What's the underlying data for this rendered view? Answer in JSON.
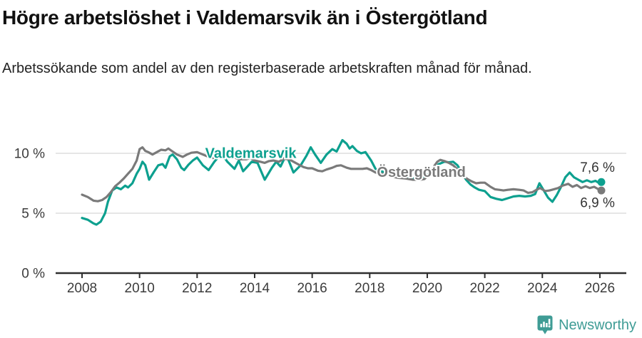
{
  "header": {
    "title": "Högre arbetslöshet i Valdemarsvik än i Östergötland",
    "subtitle": "Arbetssökande som andel av den registerbaserade arbetskraften månad för månad."
  },
  "footer": {
    "brand": "Newsworthy"
  },
  "colors": {
    "valdemarsvik": "#0DA08F",
    "ostergotland": "#7A7A7A",
    "grid": "#DDDDDD",
    "axis": "#2E2E2E",
    "tick_text": "#3C3C3C",
    "value_text": "#333333",
    "logo": "#3F9C95"
  },
  "chart_data": {
    "type": "line",
    "title": "Högre arbetslöshet i Valdemarsvik än i Östergötland",
    "subtitle": "Arbetssökande som andel av den registerbaserade arbetskraften månad för månad.",
    "y_unit": "%",
    "grid": "horizontal",
    "legend_position": "inline-labels",
    "xlim": [
      2007.9,
      2026.95
    ],
    "ylim": [
      0,
      11.6
    ],
    "x_ticks": [
      2008,
      2010,
      2012,
      2014,
      2016,
      2018,
      2020,
      2022,
      2024,
      2026
    ],
    "y_ticks": [
      {
        "value": 0,
        "label": "0 %"
      },
      {
        "value": 5,
        "label": "5 %"
      },
      {
        "value": 10,
        "label": "10 %"
      }
    ],
    "series": [
      {
        "id": "valdemarsvik",
        "name": "Valdemarsvik",
        "color_key": "valdemarsvik",
        "end_value_label": "7,6 %",
        "points": [
          [
            2008.0,
            4.6
          ],
          [
            2008.2,
            4.45
          ],
          [
            2008.4,
            4.15
          ],
          [
            2008.5,
            4.05
          ],
          [
            2008.65,
            4.3
          ],
          [
            2008.8,
            5.0
          ],
          [
            2008.9,
            5.95
          ],
          [
            2009.05,
            6.9
          ],
          [
            2009.2,
            7.15
          ],
          [
            2009.35,
            7.0
          ],
          [
            2009.5,
            7.3
          ],
          [
            2009.6,
            7.15
          ],
          [
            2009.75,
            7.5
          ],
          [
            2009.9,
            8.3
          ],
          [
            2010.0,
            8.7
          ],
          [
            2010.1,
            9.3
          ],
          [
            2010.2,
            9.0
          ],
          [
            2010.33,
            7.8
          ],
          [
            2010.5,
            8.45
          ],
          [
            2010.65,
            9.0
          ],
          [
            2010.8,
            9.1
          ],
          [
            2010.9,
            8.8
          ],
          [
            2011.05,
            9.75
          ],
          [
            2011.15,
            9.9
          ],
          [
            2011.3,
            9.5
          ],
          [
            2011.45,
            8.8
          ],
          [
            2011.55,
            8.6
          ],
          [
            2011.7,
            9.05
          ],
          [
            2011.85,
            9.4
          ],
          [
            2012.0,
            9.65
          ],
          [
            2012.2,
            9.0
          ],
          [
            2012.4,
            8.6
          ],
          [
            2012.6,
            9.3
          ],
          [
            2012.85,
            10.0
          ],
          [
            2013.05,
            9.3
          ],
          [
            2013.3,
            8.7
          ],
          [
            2013.45,
            9.4
          ],
          [
            2013.6,
            8.5
          ],
          [
            2013.75,
            8.9
          ],
          [
            2013.9,
            9.3
          ],
          [
            2014.1,
            9.2
          ],
          [
            2014.35,
            7.8
          ],
          [
            2014.6,
            8.8
          ],
          [
            2014.75,
            9.3
          ],
          [
            2014.9,
            8.9
          ],
          [
            2015.1,
            9.9
          ],
          [
            2015.35,
            8.4
          ],
          [
            2015.6,
            9.0
          ],
          [
            2015.8,
            9.8
          ],
          [
            2015.95,
            10.5
          ],
          [
            2016.1,
            9.9
          ],
          [
            2016.3,
            9.2
          ],
          [
            2016.5,
            9.9
          ],
          [
            2016.7,
            10.35
          ],
          [
            2016.85,
            10.15
          ],
          [
            2017.05,
            11.1
          ],
          [
            2017.2,
            10.8
          ],
          [
            2017.3,
            10.4
          ],
          [
            2017.4,
            10.6
          ],
          [
            2017.55,
            10.2
          ],
          [
            2017.7,
            10.0
          ],
          [
            2017.85,
            10.1
          ],
          [
            2018.05,
            9.4
          ],
          [
            2018.2,
            8.7
          ],
          [
            2018.4,
            8.5
          ],
          [
            2018.6,
            8.35
          ],
          [
            2018.8,
            8.2
          ],
          [
            2019.0,
            8.1
          ],
          [
            2019.25,
            8.0
          ],
          [
            2019.5,
            7.9
          ],
          [
            2019.75,
            7.95
          ],
          [
            2020.0,
            8.2
          ],
          [
            2020.2,
            8.6
          ],
          [
            2020.4,
            9.1
          ],
          [
            2020.6,
            9.3
          ],
          [
            2020.75,
            9.25
          ],
          [
            2020.9,
            9.3
          ],
          [
            2021.05,
            9.0
          ],
          [
            2021.2,
            8.4
          ],
          [
            2021.35,
            7.8
          ],
          [
            2021.5,
            7.4
          ],
          [
            2021.65,
            7.15
          ],
          [
            2021.8,
            6.95
          ],
          [
            2022.0,
            6.85
          ],
          [
            2022.2,
            6.35
          ],
          [
            2022.4,
            6.2
          ],
          [
            2022.6,
            6.1
          ],
          [
            2022.8,
            6.25
          ],
          [
            2023.0,
            6.4
          ],
          [
            2023.2,
            6.45
          ],
          [
            2023.4,
            6.4
          ],
          [
            2023.6,
            6.45
          ],
          [
            2023.75,
            6.6
          ],
          [
            2023.9,
            7.5
          ],
          [
            2024.05,
            6.9
          ],
          [
            2024.2,
            6.3
          ],
          [
            2024.35,
            5.95
          ],
          [
            2024.5,
            6.5
          ],
          [
            2024.65,
            7.2
          ],
          [
            2024.8,
            8.0
          ],
          [
            2024.95,
            8.4
          ],
          [
            2025.1,
            8.0
          ],
          [
            2025.25,
            7.8
          ],
          [
            2025.4,
            7.6
          ],
          [
            2025.55,
            7.75
          ],
          [
            2025.7,
            7.6
          ],
          [
            2025.85,
            7.7
          ],
          [
            2025.95,
            7.55
          ],
          [
            2026.05,
            7.6
          ]
        ]
      },
      {
        "id": "ostergotland",
        "name": "Östergötland",
        "color_key": "ostergotland",
        "end_value_label": "6,9 %",
        "points": [
          [
            2008.0,
            6.55
          ],
          [
            2008.2,
            6.35
          ],
          [
            2008.4,
            6.05
          ],
          [
            2008.55,
            6.0
          ],
          [
            2008.7,
            6.1
          ],
          [
            2008.85,
            6.35
          ],
          [
            2009.0,
            6.75
          ],
          [
            2009.15,
            7.25
          ],
          [
            2009.3,
            7.55
          ],
          [
            2009.45,
            7.9
          ],
          [
            2009.6,
            8.3
          ],
          [
            2009.75,
            8.7
          ],
          [
            2009.9,
            9.4
          ],
          [
            2010.0,
            10.35
          ],
          [
            2010.1,
            10.5
          ],
          [
            2010.2,
            10.2
          ],
          [
            2010.3,
            10.1
          ],
          [
            2010.45,
            9.9
          ],
          [
            2010.6,
            10.1
          ],
          [
            2010.75,
            10.3
          ],
          [
            2010.9,
            10.25
          ],
          [
            2011.0,
            10.4
          ],
          [
            2011.15,
            10.15
          ],
          [
            2011.3,
            9.9
          ],
          [
            2011.5,
            9.7
          ],
          [
            2011.65,
            9.9
          ],
          [
            2011.8,
            10.05
          ],
          [
            2012.0,
            10.1
          ],
          [
            2012.2,
            9.9
          ],
          [
            2012.4,
            9.7
          ],
          [
            2012.55,
            9.6
          ],
          [
            2012.7,
            9.8
          ],
          [
            2012.85,
            9.9
          ],
          [
            2013.0,
            10.0
          ],
          [
            2013.2,
            9.8
          ],
          [
            2013.35,
            9.6
          ],
          [
            2013.5,
            9.5
          ],
          [
            2013.7,
            9.5
          ],
          [
            2013.85,
            9.6
          ],
          [
            2014.0,
            9.4
          ],
          [
            2014.2,
            9.3
          ],
          [
            2014.35,
            9.2
          ],
          [
            2014.5,
            9.35
          ],
          [
            2014.65,
            9.4
          ],
          [
            2014.85,
            9.3
          ],
          [
            2015.0,
            9.55
          ],
          [
            2015.2,
            9.5
          ],
          [
            2015.35,
            9.3
          ],
          [
            2015.5,
            9.1
          ],
          [
            2015.7,
            8.85
          ],
          [
            2015.85,
            8.75
          ],
          [
            2016.0,
            8.75
          ],
          [
            2016.2,
            8.55
          ],
          [
            2016.35,
            8.5
          ],
          [
            2016.5,
            8.65
          ],
          [
            2016.7,
            8.8
          ],
          [
            2016.85,
            8.95
          ],
          [
            2017.0,
            9.0
          ],
          [
            2017.2,
            8.8
          ],
          [
            2017.35,
            8.7
          ],
          [
            2017.55,
            8.7
          ],
          [
            2017.75,
            8.7
          ],
          [
            2017.9,
            8.75
          ],
          [
            2018.05,
            8.6
          ],
          [
            2018.2,
            8.4
          ],
          [
            2018.4,
            8.3
          ],
          [
            2018.6,
            8.2
          ],
          [
            2018.8,
            8.05
          ],
          [
            2019.0,
            7.95
          ],
          [
            2019.25,
            7.9
          ],
          [
            2019.5,
            7.8
          ],
          [
            2019.75,
            7.8
          ],
          [
            2019.9,
            7.85
          ],
          [
            2020.05,
            8.2
          ],
          [
            2020.2,
            8.8
          ],
          [
            2020.35,
            9.3
          ],
          [
            2020.45,
            9.45
          ],
          [
            2020.6,
            9.35
          ],
          [
            2020.75,
            9.2
          ],
          [
            2020.9,
            9.0
          ],
          [
            2021.1,
            8.55
          ],
          [
            2021.25,
            8.1
          ],
          [
            2021.4,
            7.85
          ],
          [
            2021.55,
            7.65
          ],
          [
            2021.7,
            7.5
          ],
          [
            2021.85,
            7.55
          ],
          [
            2022.0,
            7.55
          ],
          [
            2022.2,
            7.2
          ],
          [
            2022.35,
            7.0
          ],
          [
            2022.5,
            6.95
          ],
          [
            2022.65,
            6.9
          ],
          [
            2022.8,
            6.95
          ],
          [
            2023.0,
            7.0
          ],
          [
            2023.2,
            6.95
          ],
          [
            2023.35,
            6.9
          ],
          [
            2023.5,
            6.7
          ],
          [
            2023.65,
            6.75
          ],
          [
            2023.8,
            6.95
          ],
          [
            2023.92,
            7.1
          ],
          [
            2024.1,
            6.85
          ],
          [
            2024.25,
            6.9
          ],
          [
            2024.4,
            7.0
          ],
          [
            2024.55,
            7.1
          ],
          [
            2024.7,
            7.3
          ],
          [
            2024.9,
            7.45
          ],
          [
            2025.05,
            7.2
          ],
          [
            2025.2,
            7.35
          ],
          [
            2025.35,
            7.1
          ],
          [
            2025.5,
            7.25
          ],
          [
            2025.65,
            7.1
          ],
          [
            2025.8,
            7.2
          ],
          [
            2025.95,
            7.0
          ],
          [
            2026.05,
            6.9
          ]
        ]
      }
    ],
    "series_labels": [
      {
        "id": "valdemarsvik",
        "text": "Valdemarsvik",
        "color_key": "valdemarsvik",
        "x_year": 2012.28,
        "y_value": 9.6,
        "anchor": "start"
      },
      {
        "id": "ostergotland",
        "text": "Östergötland",
        "color_key": "ostergotland",
        "x_year": 2018.25,
        "y_value": 8.05,
        "anchor": "start"
      }
    ],
    "end_labels": [
      {
        "id": "valdemarsvik",
        "text": "7,6 %",
        "x_year": 2026.52,
        "y_value": 8.45,
        "anchor": "end"
      },
      {
        "id": "ostergotland",
        "text": "6,9 %",
        "x_year": 2026.52,
        "y_value": 5.5,
        "anchor": "end"
      }
    ]
  }
}
